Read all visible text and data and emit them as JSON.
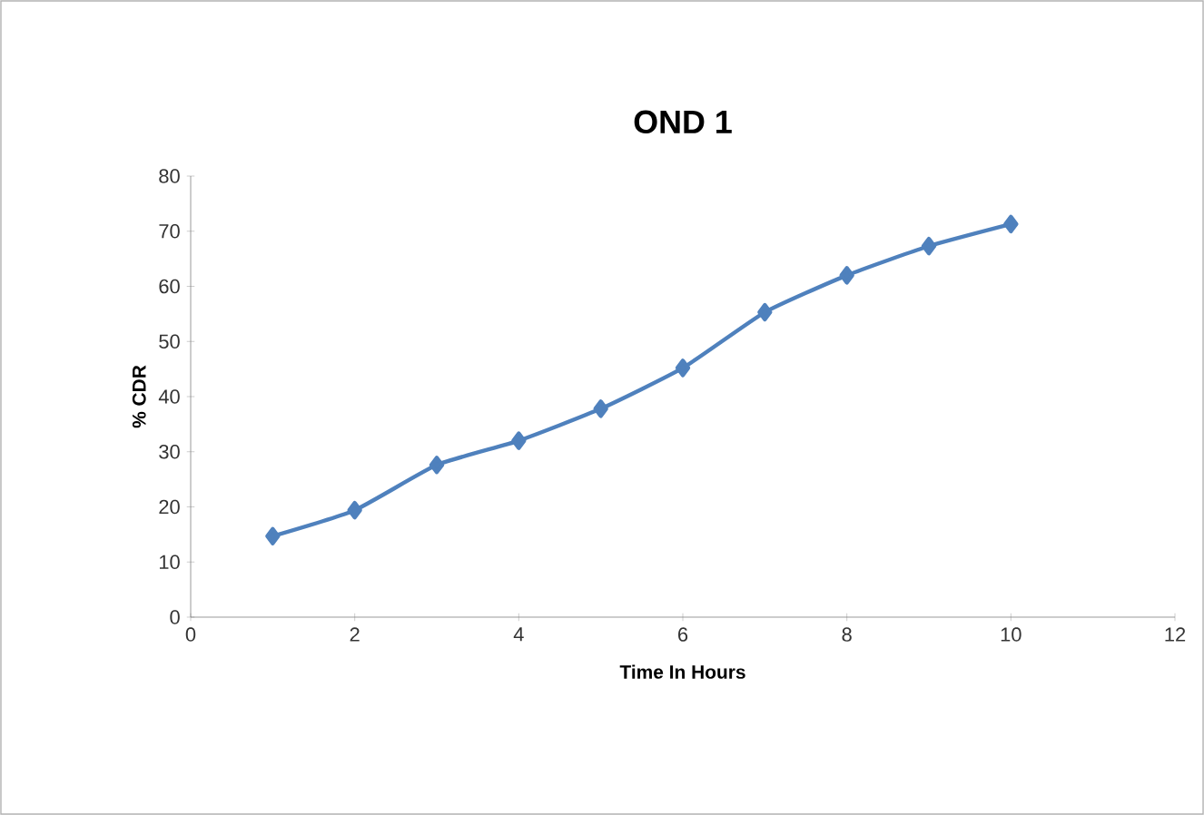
{
  "chart_data": {
    "type": "line",
    "title": "OND 1",
    "xlabel": "Time In Hours",
    "ylabel": "% CDR",
    "x": [
      1,
      2,
      3,
      4,
      5,
      6,
      7,
      8,
      9,
      10
    ],
    "series": [
      {
        "color": "#4f81bd",
        "values": [
          14.7,
          19.4,
          27.6,
          32,
          37.8,
          45.2,
          55.3,
          62,
          67.3,
          71.3
        ]
      }
    ],
    "xlim": [
      0,
      12
    ],
    "xticks": [
      0,
      2,
      4,
      6,
      8,
      10,
      12
    ],
    "ylim": [
      0,
      80
    ],
    "yticks": [
      0,
      10,
      20,
      30,
      40,
      50,
      60,
      70,
      80
    ],
    "marker": "diamond",
    "line_style": "solid"
  }
}
